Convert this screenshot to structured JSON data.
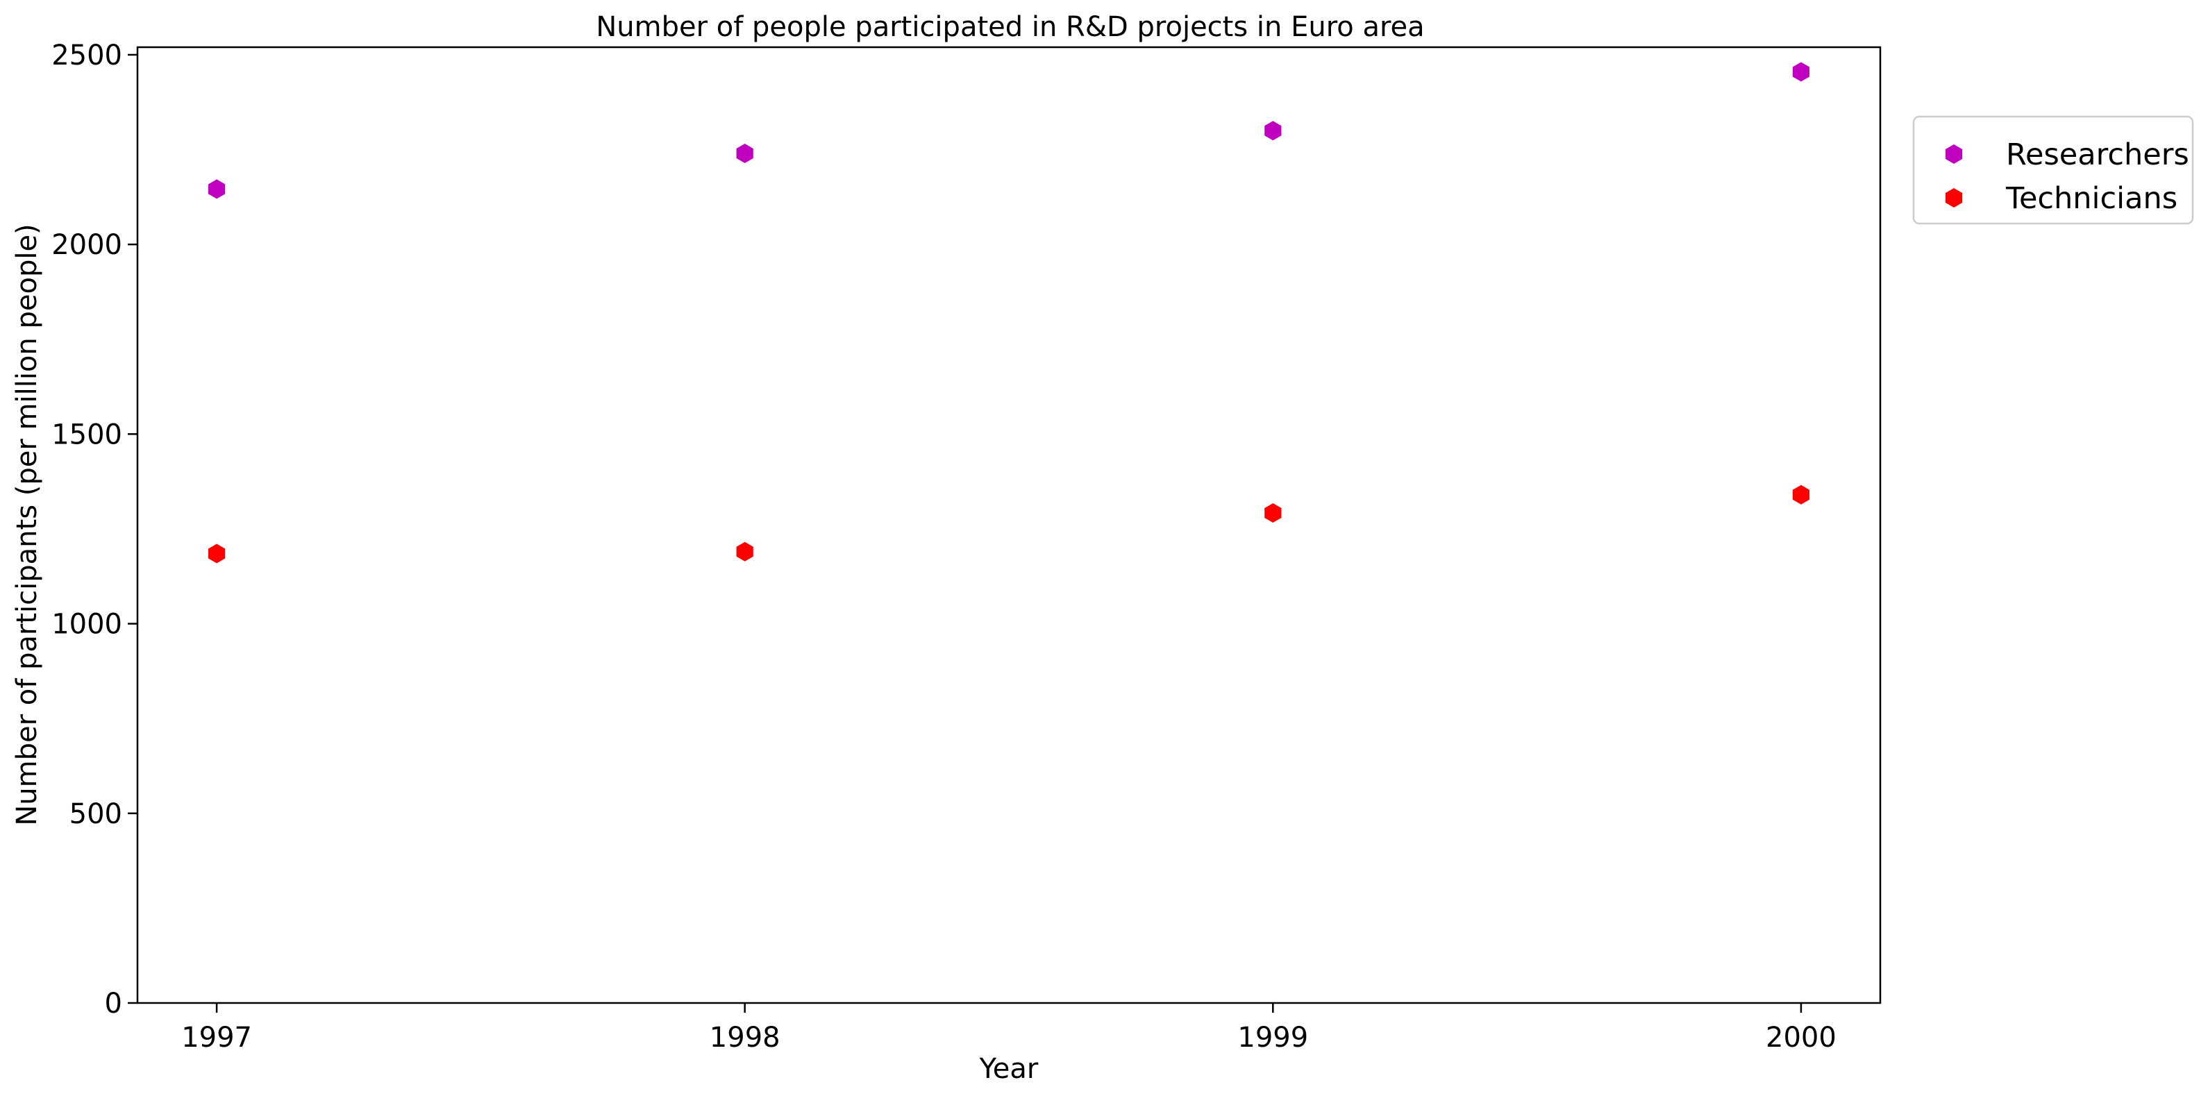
{
  "chart_data": {
    "type": "scatter",
    "title": "Number of people participated in R&D projects in Euro area",
    "xlabel": "Year",
    "ylabel": "Number of participants (per million people)",
    "x": [
      "1997",
      "1998",
      "1999",
      "2000"
    ],
    "xlim": [
      1996.85,
      2000.15
    ],
    "ylim": [
      0,
      2520
    ],
    "yticks": [
      0,
      500,
      1000,
      1500,
      2000,
      2500
    ],
    "grid": false,
    "legend_position": "outside right, top",
    "marker": "hexagon",
    "series": [
      {
        "name": "Researchers",
        "color": "#bf00bf",
        "values": [
          2146,
          2240,
          2300,
          2455
        ]
      },
      {
        "name": "Technicians",
        "color": "#ff0000",
        "values": [
          1185,
          1190,
          1292,
          1340
        ]
      }
    ]
  }
}
